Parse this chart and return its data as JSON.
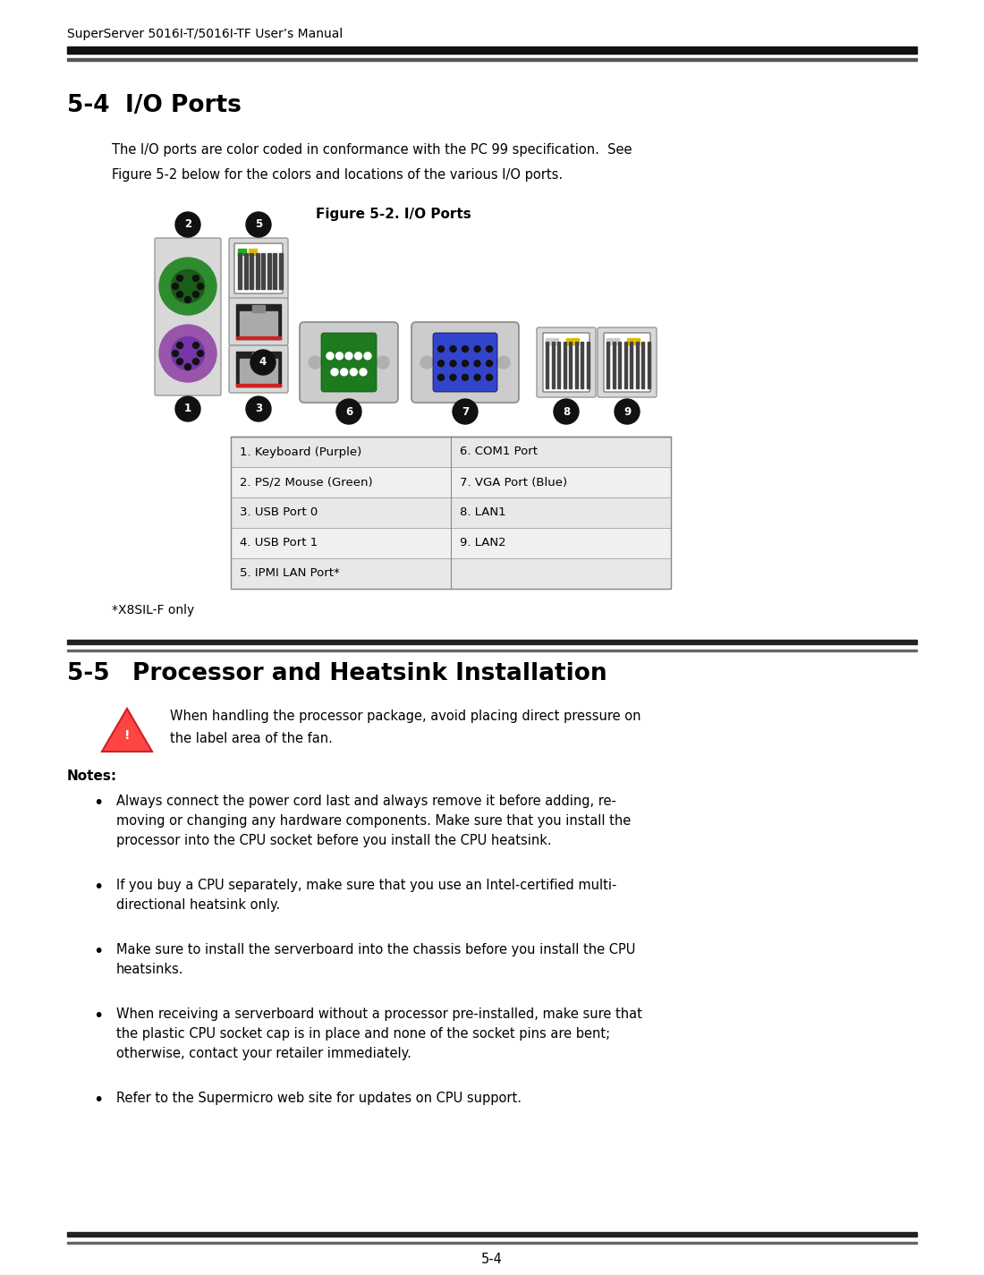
{
  "header_text": "SuperServer 5016I-T/5016I-TF User’s Manual",
  "section_title": "5-4   I/O Ports",
  "para1_line1": "The I/O ports are color coded in conformance with the PC 99 specification.  See",
  "para1_line2": "Figure 5-2 below for the colors and locations of the various I/O ports.",
  "figure_title": "Figure 5-2. I/O Ports",
  "table_left": [
    "1. Keyboard (Purple)",
    "2. PS/2 Mouse (Green)",
    "3. USB Port 0",
    "4. USB Port 1",
    "5. IPMI LAN Port*"
  ],
  "table_right": [
    "6. COM1 Port",
    "7. VGA Port (Blue)",
    "8. LAN1",
    "9. LAN2",
    ""
  ],
  "footnote": "*X8SIL-F only",
  "section2_title": "5-5   Processor and Heatsink Installation",
  "warning_line1": "When handling the processor package, avoid placing direct pressure on",
  "warning_line2": "the label area of the fan.",
  "notes_title": "Notes:",
  "note1_lines": [
    "Always connect the power cord last and always remove it before adding, re-",
    "moving or changing any hardware components. Make sure that you install the",
    "processor into the CPU socket before you install the CPU heatsink."
  ],
  "note2_lines": [
    "If you buy a CPU separately, make sure that you use an Intel-certified multi-",
    "directional heatsink only."
  ],
  "note3_lines": [
    "Make sure to install the serverboard into the chassis before you install the CPU",
    "heatsinks."
  ],
  "note4_lines": [
    "When receiving a serverboard without a processor pre-installed, make sure that",
    "the plastic CPU socket cap is in place and none of the socket pins are bent;",
    "otherwise, contact your retailer immediately."
  ],
  "note5_lines": [
    "Refer to the Supermicro web site for updates on CPU support."
  ],
  "footer_text": "5-4",
  "bg_color": "#ffffff",
  "text_color": "#000000",
  "header_line1_color": "#111111",
  "header_line2_color": "#555555"
}
